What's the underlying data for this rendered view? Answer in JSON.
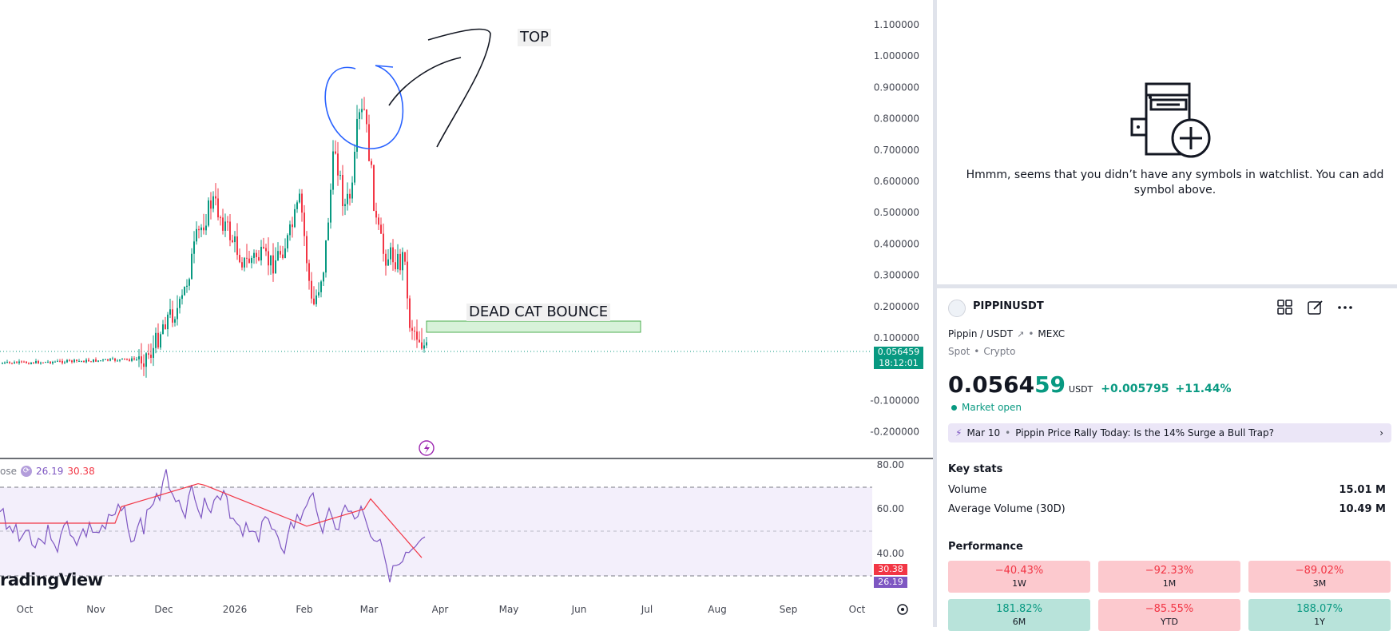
{
  "chart": {
    "price_scale": [
      "1.100000",
      "1.000000",
      "0.900000",
      "0.800000",
      "0.700000",
      "0.600000",
      "0.500000",
      "0.400000",
      "0.300000",
      "0.200000",
      "0.100000",
      "-0.100000",
      "-0.200000"
    ],
    "time_scale": [
      "Oct",
      "Nov",
      "Dec",
      "2026",
      "Feb",
      "Mar",
      "Apr",
      "May",
      "Jun",
      "Jul",
      "Aug",
      "Sep",
      "Oct"
    ],
    "rsi_scale": [
      "80.00",
      "60.00",
      "40.00"
    ],
    "last_price_tag": "0.056459",
    "countdown_tag": "18:12:01",
    "annotation_top": "TOP",
    "annotation_bounce": "DEAD CAT BOUNCE",
    "rsi_legend_prefix": "ose",
    "rsi_value": "26.19",
    "rsi_ma_value": "30.38",
    "rsi_tag_ma": "30.38",
    "rsi_tag_value": "26.19",
    "watermark": "radingView",
    "colors": {
      "up": "#089981",
      "down": "#f23645",
      "rsi": "#7e57c2",
      "rsi_ma": "#f23645",
      "rsi_band": "#f3effb"
    }
  },
  "watchlist": {
    "empty_message": "Hmmm, seems that you didn’t have any symbols in watchlist. You can add symbol above.",
    "icon": "watchlist-add-icon"
  },
  "symbol": {
    "ticker": "PIPPINUSDT",
    "pair": "Pippin / USDT",
    "exchange": "MEXC",
    "type": "Spot",
    "category": "Crypto",
    "price_main": "0.0564",
    "price_tail": "59",
    "currency": "USDT",
    "change_abs": "+0.005795",
    "change_pct": "+11.44%",
    "market_status": "Market open",
    "news_date": "Mar 10",
    "news_headline": "Pippin Price Rally Today: Is the 14% Surge a Bull Trap?"
  },
  "key_stats": {
    "title": "Key stats",
    "volume_label": "Volume",
    "volume_value": "15.01 M",
    "avg_volume_label": "Average Volume (30D)",
    "avg_volume_value": "10.49 M"
  },
  "performance": {
    "title": "Performance",
    "items": [
      {
        "value": "−40.43%",
        "period": "1W",
        "trend": "down"
      },
      {
        "value": "−92.33%",
        "period": "1M",
        "trend": "down"
      },
      {
        "value": "−89.02%",
        "period": "3M",
        "trend": "down"
      },
      {
        "value": "181.82%",
        "period": "6M",
        "trend": "up"
      },
      {
        "value": "−85.55%",
        "period": "YTD",
        "trend": "down"
      },
      {
        "value": "188.07%",
        "period": "1Y",
        "trend": "up"
      }
    ]
  }
}
